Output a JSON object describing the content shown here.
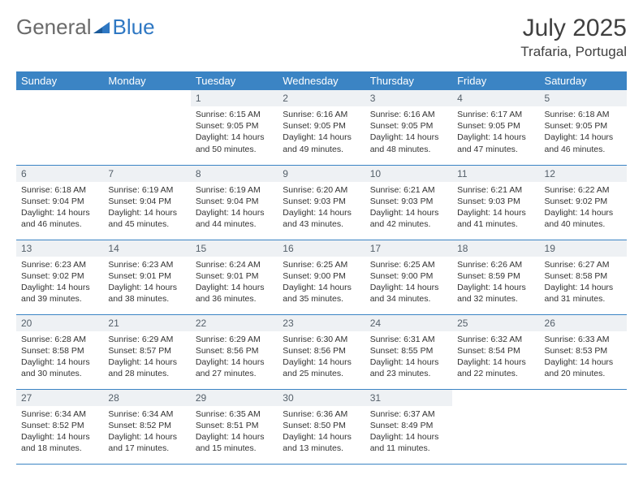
{
  "brand": {
    "general": "General",
    "blue": "Blue"
  },
  "title": "July 2025",
  "location": "Trafaria, Portugal",
  "colors": {
    "header_bg": "#3B84C4",
    "header_text": "#ffffff",
    "daynum_bg": "#eef1f4",
    "daynum_text": "#55606a",
    "border": "#3B84C4",
    "logo_gray": "#6a6a6a",
    "logo_blue": "#2f78c3"
  },
  "weekdays": [
    "Sunday",
    "Monday",
    "Tuesday",
    "Wednesday",
    "Thursday",
    "Friday",
    "Saturday"
  ],
  "first_day_index": 2,
  "days": [
    {
      "n": 1,
      "sunrise": "6:15 AM",
      "sunset": "9:05 PM",
      "daylight": "14 hours and 50 minutes."
    },
    {
      "n": 2,
      "sunrise": "6:16 AM",
      "sunset": "9:05 PM",
      "daylight": "14 hours and 49 minutes."
    },
    {
      "n": 3,
      "sunrise": "6:16 AM",
      "sunset": "9:05 PM",
      "daylight": "14 hours and 48 minutes."
    },
    {
      "n": 4,
      "sunrise": "6:17 AM",
      "sunset": "9:05 PM",
      "daylight": "14 hours and 47 minutes."
    },
    {
      "n": 5,
      "sunrise": "6:18 AM",
      "sunset": "9:05 PM",
      "daylight": "14 hours and 46 minutes."
    },
    {
      "n": 6,
      "sunrise": "6:18 AM",
      "sunset": "9:04 PM",
      "daylight": "14 hours and 46 minutes."
    },
    {
      "n": 7,
      "sunrise": "6:19 AM",
      "sunset": "9:04 PM",
      "daylight": "14 hours and 45 minutes."
    },
    {
      "n": 8,
      "sunrise": "6:19 AM",
      "sunset": "9:04 PM",
      "daylight": "14 hours and 44 minutes."
    },
    {
      "n": 9,
      "sunrise": "6:20 AM",
      "sunset": "9:03 PM",
      "daylight": "14 hours and 43 minutes."
    },
    {
      "n": 10,
      "sunrise": "6:21 AM",
      "sunset": "9:03 PM",
      "daylight": "14 hours and 42 minutes."
    },
    {
      "n": 11,
      "sunrise": "6:21 AM",
      "sunset": "9:03 PM",
      "daylight": "14 hours and 41 minutes."
    },
    {
      "n": 12,
      "sunrise": "6:22 AM",
      "sunset": "9:02 PM",
      "daylight": "14 hours and 40 minutes."
    },
    {
      "n": 13,
      "sunrise": "6:23 AM",
      "sunset": "9:02 PM",
      "daylight": "14 hours and 39 minutes."
    },
    {
      "n": 14,
      "sunrise": "6:23 AM",
      "sunset": "9:01 PM",
      "daylight": "14 hours and 38 minutes."
    },
    {
      "n": 15,
      "sunrise": "6:24 AM",
      "sunset": "9:01 PM",
      "daylight": "14 hours and 36 minutes."
    },
    {
      "n": 16,
      "sunrise": "6:25 AM",
      "sunset": "9:00 PM",
      "daylight": "14 hours and 35 minutes."
    },
    {
      "n": 17,
      "sunrise": "6:25 AM",
      "sunset": "9:00 PM",
      "daylight": "14 hours and 34 minutes."
    },
    {
      "n": 18,
      "sunrise": "6:26 AM",
      "sunset": "8:59 PM",
      "daylight": "14 hours and 32 minutes."
    },
    {
      "n": 19,
      "sunrise": "6:27 AM",
      "sunset": "8:58 PM",
      "daylight": "14 hours and 31 minutes."
    },
    {
      "n": 20,
      "sunrise": "6:28 AM",
      "sunset": "8:58 PM",
      "daylight": "14 hours and 30 minutes."
    },
    {
      "n": 21,
      "sunrise": "6:29 AM",
      "sunset": "8:57 PM",
      "daylight": "14 hours and 28 minutes."
    },
    {
      "n": 22,
      "sunrise": "6:29 AM",
      "sunset": "8:56 PM",
      "daylight": "14 hours and 27 minutes."
    },
    {
      "n": 23,
      "sunrise": "6:30 AM",
      "sunset": "8:56 PM",
      "daylight": "14 hours and 25 minutes."
    },
    {
      "n": 24,
      "sunrise": "6:31 AM",
      "sunset": "8:55 PM",
      "daylight": "14 hours and 23 minutes."
    },
    {
      "n": 25,
      "sunrise": "6:32 AM",
      "sunset": "8:54 PM",
      "daylight": "14 hours and 22 minutes."
    },
    {
      "n": 26,
      "sunrise": "6:33 AM",
      "sunset": "8:53 PM",
      "daylight": "14 hours and 20 minutes."
    },
    {
      "n": 27,
      "sunrise": "6:34 AM",
      "sunset": "8:52 PM",
      "daylight": "14 hours and 18 minutes."
    },
    {
      "n": 28,
      "sunrise": "6:34 AM",
      "sunset": "8:52 PM",
      "daylight": "14 hours and 17 minutes."
    },
    {
      "n": 29,
      "sunrise": "6:35 AM",
      "sunset": "8:51 PM",
      "daylight": "14 hours and 15 minutes."
    },
    {
      "n": 30,
      "sunrise": "6:36 AM",
      "sunset": "8:50 PM",
      "daylight": "14 hours and 13 minutes."
    },
    {
      "n": 31,
      "sunrise": "6:37 AM",
      "sunset": "8:49 PM",
      "daylight": "14 hours and 11 minutes."
    }
  ],
  "labels": {
    "sunrise": "Sunrise:",
    "sunset": "Sunset:",
    "daylight": "Daylight:"
  }
}
